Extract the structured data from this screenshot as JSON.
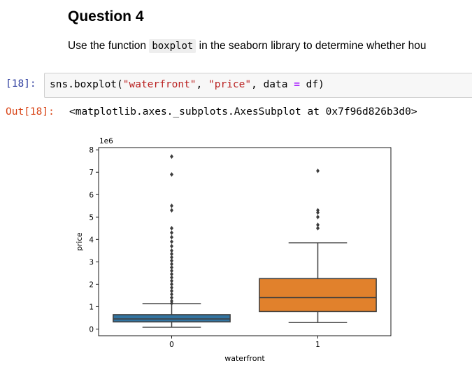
{
  "section": {
    "title": "Question 4",
    "text_before": "Use the function ",
    "function_name": "boxplot",
    "text_after": " in the seaborn library to determine whether hou"
  },
  "input_cell": {
    "prompt": "[18]:",
    "code_prefix": "sns.boxplot(",
    "arg1": "\"waterfront\"",
    "sep1": ", ",
    "arg2": "\"price\"",
    "sep2": ", data ",
    "equals": "=",
    "code_suffix": " df)"
  },
  "output_cell": {
    "prompt": "Out[18]:",
    "text": "<matplotlib.axes._subplots.AxesSubplot at 0x7f96d826b3d0>"
  },
  "chart_data": {
    "type": "box",
    "xlabel": "waterfront",
    "ylabel": "price",
    "y_offset_label": "1e6",
    "categories": [
      "0",
      "1"
    ],
    "yticks": [
      0,
      1,
      2,
      3,
      4,
      5,
      6,
      7,
      8
    ],
    "ylim": [
      -0.3,
      8.1
    ],
    "grid": false,
    "boxes": [
      {
        "category": "0",
        "color": "#3274a1",
        "q1": 0.32,
        "median": 0.45,
        "q3": 0.64,
        "whisker_low": 0.08,
        "whisker_high": 1.13,
        "outliers": [
          1.15,
          1.25,
          1.4,
          1.55,
          1.7,
          1.85,
          2.0,
          2.15,
          2.3,
          2.45,
          2.6,
          2.75,
          2.9,
          3.05,
          3.2,
          3.35,
          3.5,
          3.7,
          3.9,
          4.1,
          4.3,
          4.5,
          5.3,
          5.5,
          6.9,
          7.7
        ]
      },
      {
        "category": "1",
        "color": "#e1812c",
        "q1": 0.78,
        "median": 1.4,
        "q3": 2.25,
        "whisker_low": 0.29,
        "whisker_high": 3.85,
        "outliers": [
          4.5,
          4.65,
          5.0,
          5.2,
          5.3,
          7.06
        ]
      }
    ]
  }
}
